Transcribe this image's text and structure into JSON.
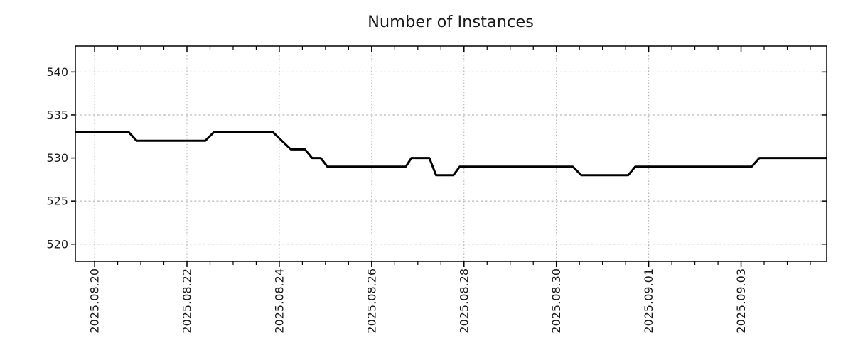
{
  "page": {
    "background": "#ffffff"
  },
  "chart_data": {
    "type": "line",
    "title": "Number of Instances",
    "xlabel": "",
    "ylabel": "",
    "xlim": [
      "2025-08-19T14:00:00",
      "2025-09-04T20:30:00"
    ],
    "ylim": [
      518,
      543
    ],
    "grid": {
      "show": true,
      "style": "dotted"
    },
    "legend": {
      "show": false
    },
    "colors": {
      "line": "#000000",
      "axis": "#000000",
      "grid": "#a9a9a9",
      "text": "#1a1a1a",
      "background": "#ffffff"
    },
    "line_width": 3,
    "y_ticks": [
      {
        "value": 520,
        "label": "520"
      },
      {
        "value": 525,
        "label": "525"
      },
      {
        "value": 530,
        "label": "530"
      },
      {
        "value": 535,
        "label": "535"
      },
      {
        "value": 540,
        "label": "540"
      }
    ],
    "x_ticks_major": [
      {
        "date": "2025-08-20T00:00:00",
        "label": "2025.08.20"
      },
      {
        "date": "2025-08-22T00:00:00",
        "label": "2025.08.22"
      },
      {
        "date": "2025-08-24T00:00:00",
        "label": "2025.08.24"
      },
      {
        "date": "2025-08-26T00:00:00",
        "label": "2025.08.26"
      },
      {
        "date": "2025-08-28T00:00:00",
        "label": "2025.08.28"
      },
      {
        "date": "2025-08-30T00:00:00",
        "label": "2025.08.30"
      },
      {
        "date": "2025-09-01T00:00:00",
        "label": "2025.09.01"
      },
      {
        "date": "2025-09-03T00:00:00",
        "label": "2025.09.03"
      }
    ],
    "x_minor_interval_hours": 12,
    "series": [
      {
        "name": "instances",
        "color": "#000000",
        "points": [
          [
            "2025-08-19T14:00:00",
            533
          ],
          [
            "2025-08-20T17:45:00",
            533
          ],
          [
            "2025-08-20T21:50:00",
            532
          ],
          [
            "2025-08-22T09:30:00",
            532
          ],
          [
            "2025-08-22T14:00:00",
            533
          ],
          [
            "2025-08-23T20:40:00",
            533
          ],
          [
            "2025-08-24T06:00:00",
            531
          ],
          [
            "2025-08-24T13:20:00",
            531
          ],
          [
            "2025-08-24T17:00:00",
            530
          ],
          [
            "2025-08-24T21:30:00",
            530
          ],
          [
            "2025-08-25T01:00:00",
            529
          ],
          [
            "2025-08-26T17:45:00",
            529
          ],
          [
            "2025-08-26T20:40:00",
            530
          ],
          [
            "2025-08-27T06:00:00",
            530
          ],
          [
            "2025-08-27T09:30:00",
            528
          ],
          [
            "2025-08-27T18:30:00",
            528
          ],
          [
            "2025-08-27T21:45:00",
            529
          ],
          [
            "2025-08-30T08:30:00",
            529
          ],
          [
            "2025-08-30T13:00:00",
            528
          ],
          [
            "2025-08-31T13:20:00",
            528
          ],
          [
            "2025-08-31T17:00:00",
            529
          ],
          [
            "2025-09-03T05:30:00",
            529
          ],
          [
            "2025-09-03T09:30:00",
            530
          ],
          [
            "2025-09-04T20:30:00",
            530
          ]
        ]
      }
    ]
  }
}
